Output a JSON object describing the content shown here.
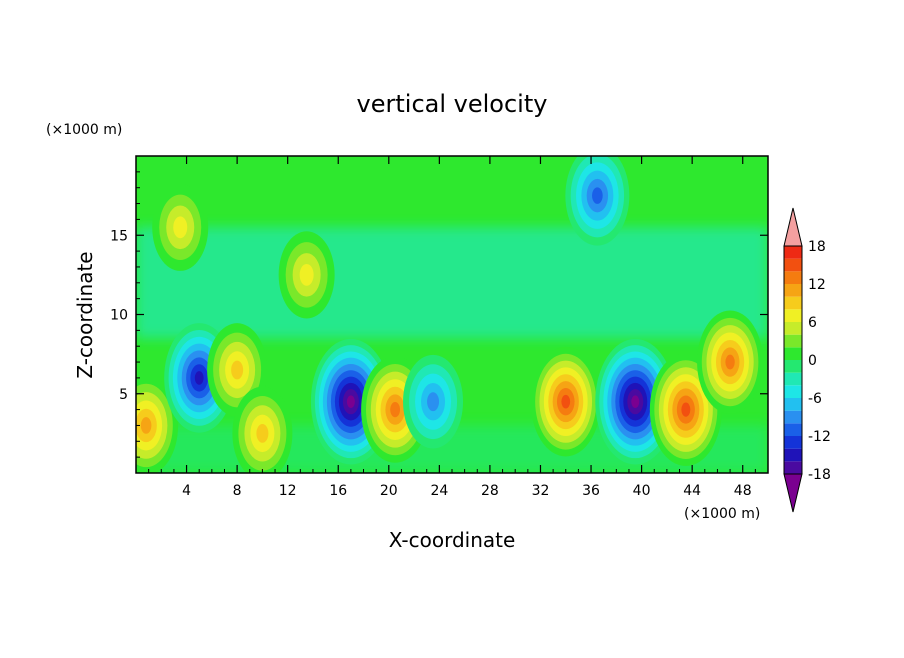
{
  "chart_data": {
    "type": "heatmap",
    "title": "vertical velocity",
    "xlabel": "X-coordinate",
    "ylabel": "Z-coordinate",
    "x_unit": "(×1000 m)",
    "y_unit": "(×1000 m)",
    "xlim": [
      0,
      50
    ],
    "ylim": [
      0,
      20
    ],
    "x_ticks": [
      4,
      8,
      12,
      16,
      20,
      24,
      28,
      32,
      36,
      40,
      44,
      48
    ],
    "y_ticks": [
      5,
      10,
      15
    ],
    "colorbar": {
      "levels": [
        18,
        12,
        6,
        0,
        -6,
        -12,
        -18
      ],
      "range": [
        -21,
        21
      ],
      "colors": [
        "#7a0090",
        "#4a0aa0",
        "#1f13b8",
        "#1433d8",
        "#1a60e8",
        "#2a90f0",
        "#22c0f0",
        "#1ee6e6",
        "#20e8b4",
        "#24e870",
        "#2ee82e",
        "#7ae82a",
        "#c6ec2a",
        "#f0f024",
        "#f6cc1c",
        "#f6a414",
        "#f57c10",
        "#f25010",
        "#ee2a14",
        "#f4a0a0"
      ]
    },
    "features": [
      {
        "x": 0.8,
        "z": 3.0,
        "w": 10,
        "kind": "up"
      },
      {
        "x": 5.0,
        "z": 6.0,
        "w": -13,
        "kind": "down"
      },
      {
        "x": 8.0,
        "z": 6.5,
        "w": 8,
        "kind": "up"
      },
      {
        "x": 10.0,
        "z": 2.5,
        "w": 8,
        "kind": "up"
      },
      {
        "x": 17.0,
        "z": 4.5,
        "w": -18,
        "kind": "down"
      },
      {
        "x": 20.5,
        "z": 4.0,
        "w": 12,
        "kind": "up"
      },
      {
        "x": 23.5,
        "z": 4.5,
        "w": -8,
        "kind": "down"
      },
      {
        "x": 34.0,
        "z": 4.5,
        "w": 13,
        "kind": "up"
      },
      {
        "x": 39.5,
        "z": 4.5,
        "w": -18,
        "kind": "down"
      },
      {
        "x": 43.5,
        "z": 4.0,
        "w": 14,
        "kind": "up"
      },
      {
        "x": 47.0,
        "z": 7.0,
        "w": 11,
        "kind": "up"
      },
      {
        "x": 36.5,
        "z": 17.5,
        "w": -10,
        "kind": "down"
      },
      {
        "x": 13.5,
        "z": 12.5,
        "w": 6,
        "kind": "up"
      },
      {
        "x": 3.5,
        "z": 15.5,
        "w": 6,
        "kind": "up"
      }
    ]
  }
}
